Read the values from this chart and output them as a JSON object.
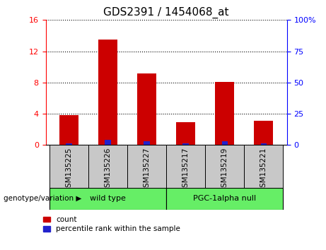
{
  "title": "GDS2391 / 1454068_at",
  "samples": [
    "GSM135225",
    "GSM135226",
    "GSM135227",
    "GSM135217",
    "GSM135219",
    "GSM135221"
  ],
  "count_values": [
    3.8,
    13.5,
    9.2,
    2.9,
    8.1,
    3.1
  ],
  "percentile_values": [
    1.1,
    4.1,
    3.2,
    1.1,
    3.2,
    1.2
  ],
  "left_ylim": [
    0,
    16
  ],
  "right_ylim": [
    0,
    100
  ],
  "left_yticks": [
    0,
    4,
    8,
    12,
    16
  ],
  "right_yticks": [
    0,
    25,
    50,
    75,
    100
  ],
  "right_yticklabels": [
    "0",
    "25",
    "50",
    "75",
    "100%"
  ],
  "bar_width": 0.5,
  "pct_bar_width": 0.15,
  "count_color": "#cc0000",
  "percentile_color": "#2222cc",
  "group1_label": "wild type",
  "group2_label": "PGC-1alpha null",
  "group1_indices": [
    0,
    1,
    2
  ],
  "group2_indices": [
    3,
    4,
    5
  ],
  "group_bg_color": "#66ee66",
  "tick_label_bg": "#c8c8c8",
  "genotype_label": "genotype/variation",
  "legend_count": "count",
  "legend_percentile": "percentile rank within the sample",
  "plot_bg_color": "#ffffff"
}
